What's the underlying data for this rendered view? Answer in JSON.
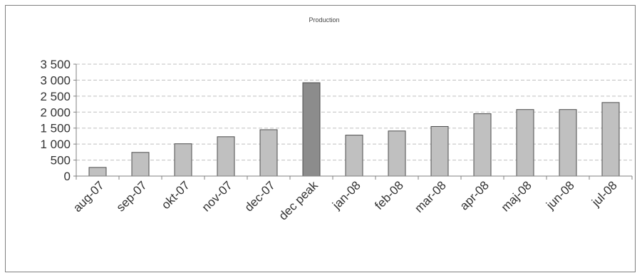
{
  "chart_data": {
    "type": "bar",
    "title": "Production",
    "xlabel": "",
    "ylabel": "",
    "categories": [
      "aug-07",
      "sep-07",
      "okt-07",
      "nov-07",
      "dec-07",
      "dec peak",
      "jan-08",
      "feb-08",
      "mar-08",
      "apr-08",
      "maj-08",
      "jun-08",
      "jul-08"
    ],
    "values": [
      270,
      740,
      1010,
      1230,
      1450,
      2920,
      1280,
      1410,
      1550,
      1950,
      2080,
      2080,
      2300
    ],
    "highlight_category": "dec peak",
    "ylim": [
      0,
      3500
    ],
    "yticks": [
      0,
      500,
      1000,
      1500,
      2000,
      2500,
      3000,
      3500
    ],
    "ytick_labels": [
      "0",
      "500",
      "1 000",
      "1 500",
      "2 000",
      "2 500",
      "3 000",
      "3 500"
    ],
    "grid": true,
    "legend": "none",
    "colors": {
      "bar": "#c0c0c0",
      "bar_highlight": "#8c8c8c",
      "bar_edge": "#4d4d4d",
      "grid": "#bfbfbf",
      "axis": "#808080"
    }
  }
}
